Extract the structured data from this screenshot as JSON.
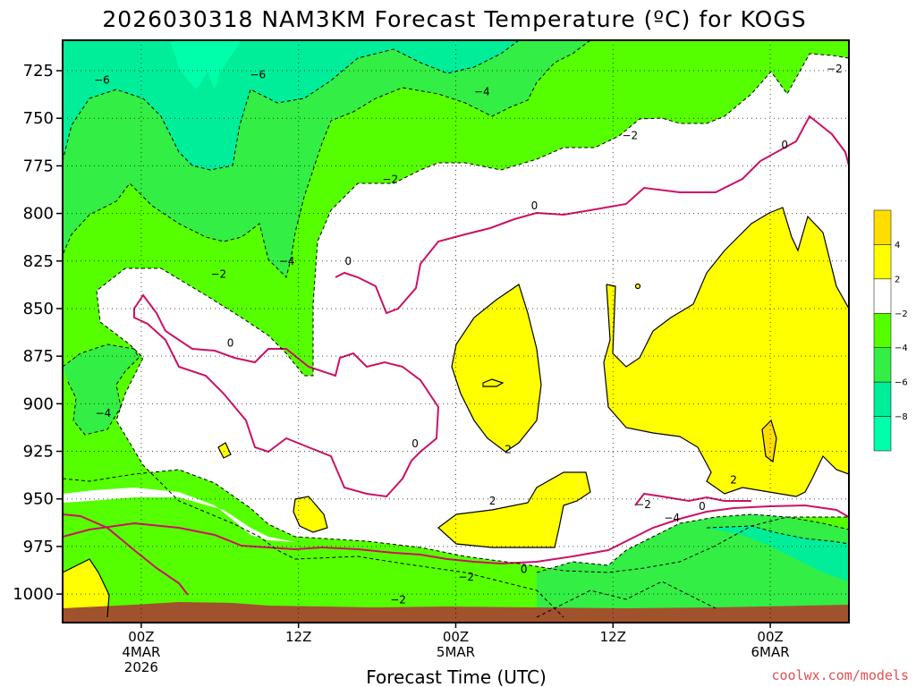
{
  "chart_data": {
    "type": "heatmap",
    "title": "2026030318 NAM3KM Forecast Temperature (ºC) for KOGS",
    "xlabel": "Forecast Time (UTC)",
    "ylabel": "",
    "y_axis": {
      "unit": "hPa",
      "inverted": true,
      "range": [
        1015,
        709
      ],
      "ticks": [
        725,
        750,
        775,
        800,
        825,
        850,
        875,
        900,
        925,
        950,
        975,
        1000
      ]
    },
    "x_axis": {
      "unit": "hours since 2026-03-03 18Z",
      "range": [
        0,
        60
      ],
      "ticks": [
        {
          "hour": 6,
          "lines": [
            "00Z",
            "4MAR",
            "2026"
          ]
        },
        {
          "hour": 18,
          "lines": [
            "12Z"
          ]
        },
        {
          "hour": 30,
          "lines": [
            "00Z",
            "5MAR"
          ]
        },
        {
          "hour": 42,
          "lines": [
            "12Z"
          ]
        },
        {
          "hour": 54,
          "lines": [
            "00Z",
            "6MAR"
          ]
        }
      ]
    },
    "grid": true,
    "contour_labels": [
      {
        "text": "-6",
        "hour": 3.0,
        "p": 730
      },
      {
        "text": "-6",
        "hour": 14.9,
        "p": 727
      },
      {
        "text": "-4",
        "hour": 32.0,
        "p": 736
      },
      {
        "text": "-2",
        "hour": 43.3,
        "p": 759
      },
      {
        "text": "-2",
        "hour": 58.9,
        "p": 724
      },
      {
        "text": "0",
        "hour": 55.1,
        "p": 764
      },
      {
        "text": "-2",
        "hour": 25.0,
        "p": 782
      },
      {
        "text": "0",
        "hour": 36.0,
        "p": 796
      },
      {
        "text": "-4",
        "hour": 17.1,
        "p": 825
      },
      {
        "text": "0",
        "hour": 21.8,
        "p": 825
      },
      {
        "text": "-2",
        "hour": 11.9,
        "p": 832
      },
      {
        "text": "0",
        "hour": 12.8,
        "p": 868
      },
      {
        "text": "-4",
        "hour": 3.1,
        "p": 905
      },
      {
        "text": "0",
        "hour": 26.9,
        "p": 921
      },
      {
        "text": "2",
        "hour": 34.0,
        "p": 924
      },
      {
        "text": "2",
        "hour": 32.8,
        "p": 951
      },
      {
        "text": "2",
        "hour": 51.2,
        "p": 940
      },
      {
        "text": "-2",
        "hour": 44.3,
        "p": 953
      },
      {
        "text": "0",
        "hour": 48.8,
        "p": 954
      },
      {
        "text": "-4",
        "hour": 46.5,
        "p": 960
      },
      {
        "text": "-2",
        "hour": 30.8,
        "p": 991
      },
      {
        "text": "0",
        "hour": 35.2,
        "p": 987
      },
      {
        "text": "-2",
        "hour": 25.6,
        "p": 1003
      }
    ],
    "legend": {
      "placement": "right",
      "entries": [
        {
          "label": "4",
          "color": "#ffdd00"
        },
        {
          "label": "2",
          "color": "#ffff00"
        },
        {
          "label": "-2",
          "color": "#ffffff"
        },
        {
          "label": "-4",
          "color": "#55ff00"
        },
        {
          "label": "-6",
          "color": "#33ee44"
        },
        {
          "label": "-8",
          "color": "#00ee99"
        },
        {
          "label": "",
          "color": "#00ffaa"
        }
      ]
    },
    "colors": {
      "cold_lt_minus6": "#00ee99",
      "minus6_minus4": "#33ee44",
      "minus4_minus2": "#55ff00",
      "minus2_2": "#ffffff",
      "2_4": "#ffff00",
      "gt_4": "#ffdd00",
      "zero_contour": "#cc1166",
      "ground": "#a0522d"
    }
  },
  "credit": "coolwx.com/models"
}
